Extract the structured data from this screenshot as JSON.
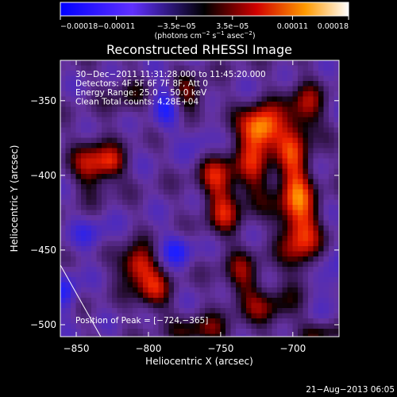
{
  "chart_data": {
    "type": "heatmap",
    "title": "Reconstructed RHESSI Image",
    "xlabel": "Heliocentric X (arcsec)",
    "ylabel": "Heliocentric Y (arcsec)",
    "xlim": [
      -861,
      -668
    ],
    "ylim": [
      -508,
      -323
    ],
    "x_ticks": [
      -850,
      -800,
      -750,
      -700
    ],
    "x_tick_labels": [
      "−850",
      "−800",
      "−750",
      "−700"
    ],
    "y_ticks": [
      -350,
      -400,
      -450,
      -500
    ],
    "y_tick_labels": [
      "−350",
      "−400",
      "−450",
      "−500"
    ],
    "colorbar": {
      "vmin": -0.00018,
      "vmax": 0.00018,
      "tick_values": [
        -0.00018,
        -0.00011,
        -3.5e-05,
        3.5e-05,
        0.00011,
        0.00018
      ],
      "tick_labels": [
        "−0.00018",
        "−0.00011",
        "−3.5e−05",
        "3.5e−05",
        "0.00011",
        "0.00018"
      ],
      "units_prefix": "(photons cm",
      "units_sup1": "−2",
      "units_mid": " s",
      "units_sup2": "−1",
      "units_mid2": " asec",
      "units_sup3": "−2",
      "units_suffix": ")"
    },
    "annotations": [
      "30−Dec−2011 11:31:28.000 to 11:45:20.000",
      "Detectors: 4F 5F 6F 7F 8F, Att 0",
      "Energy Range: 25.0 − 50.0 keV",
      "Clean    Total counts: 4.28E+04"
    ],
    "peak_label": "Position of Peak = [−724,−365]",
    "peak": {
      "x": -724,
      "y": -365
    },
    "field_sources": [
      {
        "x": -722,
        "y": -368,
        "sx": 10,
        "sy": 10,
        "a": 1.05
      },
      {
        "x": -727,
        "y": -395,
        "sx": 9,
        "sy": 18,
        "a": 0.55
      },
      {
        "x": -700,
        "y": -400,
        "sx": 9,
        "sy": 30,
        "a": 0.75
      },
      {
        "x": -693,
        "y": -440,
        "sx": 9,
        "sy": 20,
        "a": 0.65
      },
      {
        "x": -690,
        "y": -355,
        "sx": 8,
        "sy": 12,
        "a": 0.5
      },
      {
        "x": -752,
        "y": -400,
        "sx": 10,
        "sy": 12,
        "a": 0.6
      },
      {
        "x": -748,
        "y": -425,
        "sx": 9,
        "sy": 12,
        "a": 0.55
      },
      {
        "x": -735,
        "y": -468,
        "sx": 10,
        "sy": 12,
        "a": 0.5
      },
      {
        "x": -808,
        "y": -460,
        "sx": 9,
        "sy": 9,
        "a": 0.85
      },
      {
        "x": -797,
        "y": -478,
        "sx": 9,
        "sy": 10,
        "a": 0.6
      },
      {
        "x": -838,
        "y": -393,
        "sx": 10,
        "sy": 12,
        "a": 0.7
      },
      {
        "x": -825,
        "y": -392,
        "sx": 7,
        "sy": 7,
        "a": 0.45
      },
      {
        "x": -773,
        "y": -347,
        "sx": 10,
        "sy": 10,
        "a": 0.5
      },
      {
        "x": -762,
        "y": -505,
        "sx": 14,
        "sy": 8,
        "a": 0.5
      },
      {
        "x": -717,
        "y": -490,
        "sx": 12,
        "sy": 10,
        "a": 0.45
      },
      {
        "x": -815,
        "y": -347,
        "sx": 10,
        "sy": 10,
        "a": 0.3
      },
      {
        "x": -788,
        "y": -353,
        "sx": 7,
        "sy": 12,
        "a": -0.55
      },
      {
        "x": -780,
        "y": -450,
        "sx": 8,
        "sy": 8,
        "a": -0.5
      },
      {
        "x": -857,
        "y": -478,
        "sx": 6,
        "sy": 10,
        "a": -0.5
      },
      {
        "x": -840,
        "y": -440,
        "sx": 9,
        "sy": 8,
        "a": -0.35
      },
      {
        "x": -765,
        "y": -375,
        "sx": 7,
        "sy": 10,
        "a": -0.3
      },
      {
        "x": -675,
        "y": -470,
        "sx": 8,
        "sy": 12,
        "a": -0.35
      },
      {
        "x": -680,
        "y": -505,
        "sx": 10,
        "sy": 6,
        "a": 0.4
      }
    ],
    "limb_line": [
      {
        "x": -861,
        "y": -460
      },
      {
        "x": -833,
        "y": -508
      }
    ],
    "grid": false,
    "legend": "none"
  },
  "timestamp": "21−Aug−2013 06:05"
}
